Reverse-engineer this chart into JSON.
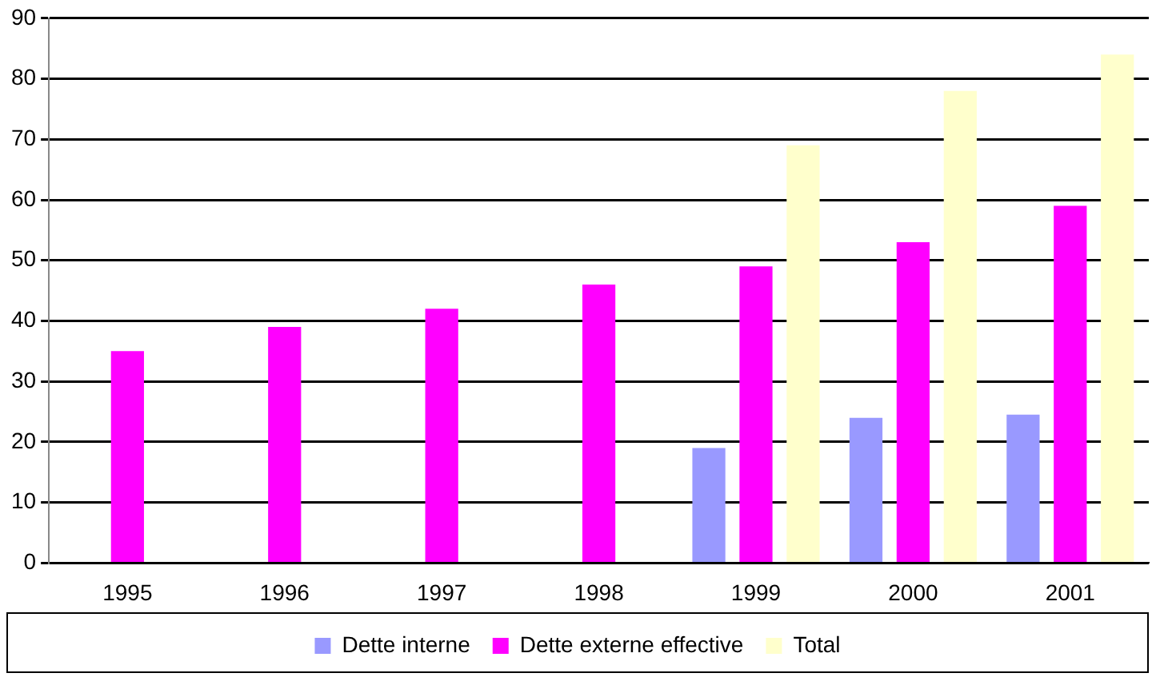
{
  "chart_data": {
    "type": "bar",
    "categories": [
      "1995",
      "1996",
      "1997",
      "1998",
      "1999",
      "2000",
      "2001"
    ],
    "series": [
      {
        "name": "Dette interne",
        "color": "#9999ff",
        "values": [
          null,
          null,
          null,
          null,
          19,
          24,
          24.5
        ]
      },
      {
        "name": "Dette externe effective",
        "color": "#ff00ff",
        "values": [
          35,
          39,
          42,
          46,
          49,
          53,
          59
        ]
      },
      {
        "name": "Total",
        "color": "#ffffcc",
        "values": [
          null,
          null,
          null,
          null,
          69,
          78,
          84
        ]
      }
    ],
    "ylim": [
      0,
      90
    ],
    "yticks": [
      0,
      10,
      20,
      30,
      40,
      50,
      60,
      70,
      80,
      90
    ],
    "grid": "y",
    "legend": "bottom"
  }
}
